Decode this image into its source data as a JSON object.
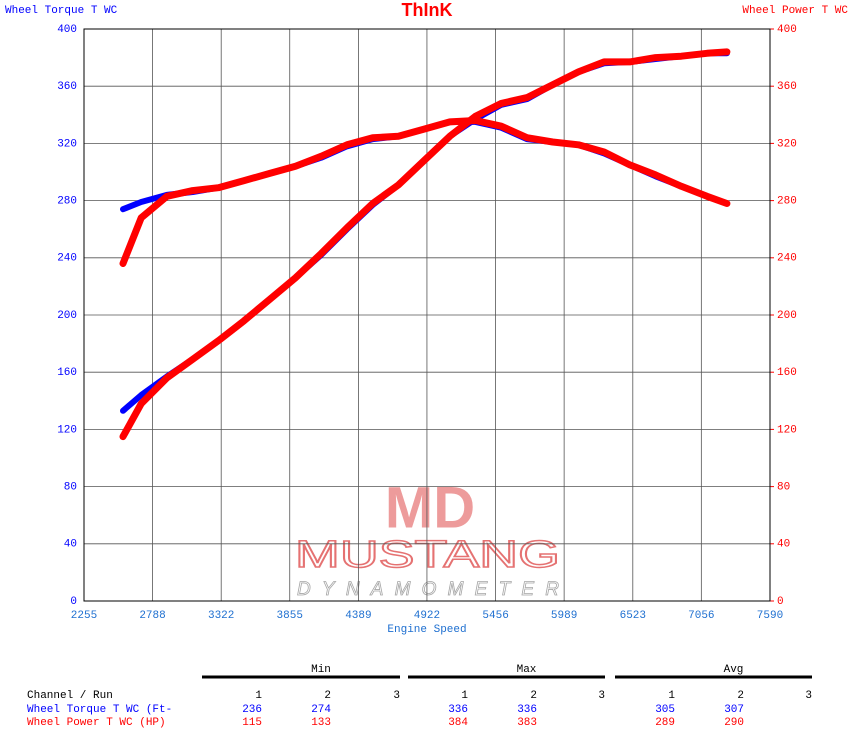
{
  "chart_data": {
    "type": "line",
    "title": "ThInK",
    "title_color": "#ff0000",
    "y_label": "Wheel Torque T WC",
    "y2_label": "Wheel Power T WC",
    "x_label": "Engine Speed",
    "x": [
      2558,
      2700,
      2900,
      3100,
      3300,
      3500,
      3700,
      3900,
      4100,
      4300,
      4500,
      4700,
      4900,
      5100,
      5300,
      5500,
      5700,
      5900,
      6100,
      6300,
      6500,
      6700,
      6900,
      7100,
      7255
    ],
    "series": [
      {
        "color": "#0000ff",
        "values": [
          274,
          279,
          284,
          286,
          289,
          294,
          299,
          304,
          310,
          318,
          323,
          325,
          330,
          335,
          335,
          331,
          323,
          321,
          319,
          313,
          305,
          297,
          290,
          283,
          278
        ]
      },
      {
        "color": "#0000ff",
        "axis": "y2",
        "values": [
          133,
          144,
          157,
          169,
          182,
          196,
          211,
          226,
          242,
          260,
          277,
          291,
          308,
          325,
          337,
          347,
          351,
          361,
          370,
          376,
          377,
          379,
          381,
          383,
          383
        ]
      },
      {
        "color": "#ff0000",
        "values": [
          236,
          268,
          283,
          287,
          289,
          294,
          299,
          304,
          311,
          319,
          324,
          325,
          330,
          335,
          336,
          332,
          324,
          321,
          319,
          314,
          305,
          298,
          290,
          283,
          278
        ]
      },
      {
        "color": "#ff0000",
        "axis": "y2",
        "values": [
          115,
          138,
          156,
          169,
          182,
          196,
          211,
          226,
          243,
          261,
          278,
          291,
          308,
          325,
          339,
          348,
          352,
          361,
          370,
          377,
          377,
          380,
          381,
          383,
          384
        ]
      }
    ],
    "xlim": [
      2255,
      7590
    ],
    "xticks": [
      2255,
      2788,
      3322,
      3855,
      4389,
      4922,
      5456,
      5989,
      6523,
      7056,
      7590
    ],
    "ylim": [
      0,
      400
    ],
    "yticks": [
      0,
      40,
      80,
      120,
      160,
      200,
      240,
      280,
      320,
      360,
      400
    ],
    "y2lim": [
      0,
      400
    ],
    "y2ticks": [
      0,
      40,
      80,
      120,
      160,
      200,
      240,
      280,
      320,
      360,
      400
    ],
    "grid": true
  },
  "watermark": {
    "mark": "MD",
    "brand": "MUSTANG",
    "sub": "DYNAMOMETER"
  },
  "summary_table": {
    "groups": [
      "Min",
      "Max",
      "Avg"
    ],
    "header_label": "Channel / Run",
    "runs": [
      1,
      2,
      3
    ],
    "rows": [
      {
        "label": "Wheel Torque T WC (Ft-",
        "color": "#0000ff",
        "values": [
          [
            236,
            274
          ],
          [
            336,
            336
          ],
          [
            305,
            307
          ]
        ]
      },
      {
        "label": "Wheel Power T WC (HP)",
        "color": "#ff0000",
        "values": [
          [
            115,
            133
          ],
          [
            384,
            383
          ],
          [
            289,
            290
          ]
        ]
      }
    ]
  }
}
